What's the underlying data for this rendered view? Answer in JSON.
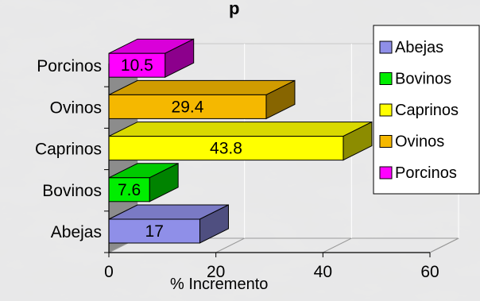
{
  "chart_data": {
    "type": "bar",
    "orientation": "horizontal",
    "style": "3d",
    "title": "",
    "title_partial": "p",
    "categories": [
      "Abejas",
      "Bovinos",
      "Caprinos",
      "Ovinos",
      "Porcinos"
    ],
    "values": [
      17,
      7.6,
      43.8,
      29.4,
      10.5
    ],
    "colors": [
      "#8f8fe8",
      "#00ee00",
      "#ffff00",
      "#f5b800",
      "#ff00ff"
    ],
    "data_labels": [
      "17",
      "7.6",
      "43.8",
      "29.4",
      "10.5"
    ],
    "xlabel": "% Incremento",
    "ylabel": "",
    "xlim": [
      0,
      60
    ],
    "xticks": [
      "0",
      "20",
      "40",
      "60"
    ],
    "grid": true,
    "legend": {
      "position": "right",
      "entries": [
        "Abejas",
        "Bovinos",
        "Caprinos",
        "Ovinos",
        "Porcinos"
      ]
    },
    "background": "marble-texture"
  }
}
